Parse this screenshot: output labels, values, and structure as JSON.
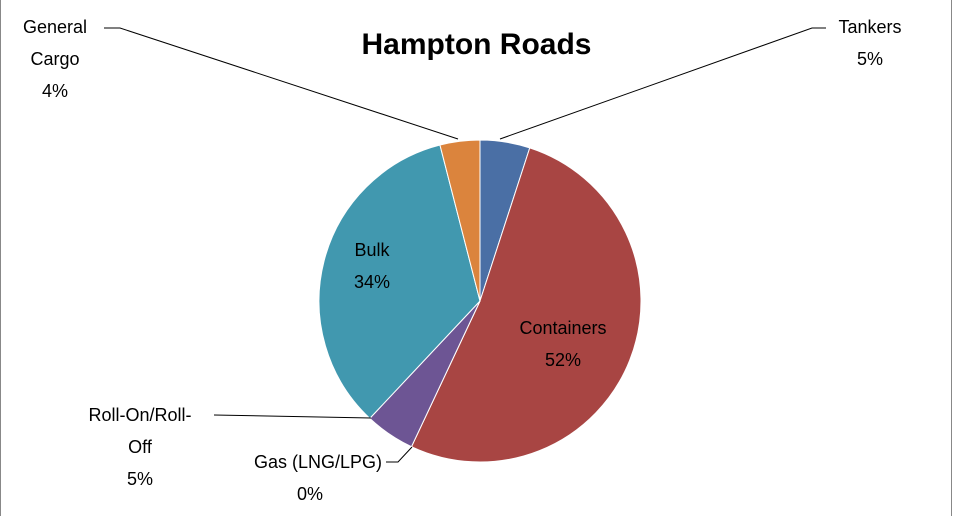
{
  "chart_data": {
    "type": "pie",
    "title": "Hampton Roads",
    "categories": [
      "Tankers",
      "Containers",
      "Gas (LNG/LPG)",
      "Roll-On/Roll-Off",
      "Bulk",
      "General Cargo"
    ],
    "values": [
      5,
      52,
      0,
      5,
      34,
      4
    ],
    "value_labels": [
      "5%",
      "52%",
      "0%",
      "5%",
      "34%",
      "4%"
    ],
    "colors": [
      "#4a6fa5",
      "#a84543",
      "#8aa84a",
      "#6d5594",
      "#4198af",
      "#db843d"
    ]
  }
}
